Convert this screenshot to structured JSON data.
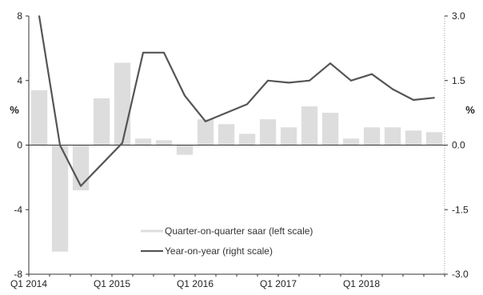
{
  "chart_data": {
    "type": "bar+line",
    "x_labels": [
      "Q1 2014",
      "Q1 2015",
      "Q1 2016",
      "Q1 2017",
      "Q1 2018"
    ],
    "quarters": [
      "Q1 2014",
      "Q2 2014",
      "Q3 2014",
      "Q4 2014",
      "Q1 2015",
      "Q2 2015",
      "Q3 2015",
      "Q4 2015",
      "Q1 2016",
      "Q2 2016",
      "Q3 2016",
      "Q4 2016",
      "Q1 2017",
      "Q2 2017",
      "Q3 2017",
      "Q4 2017",
      "Q1 2018",
      "Q2 2018",
      "Q3 2018",
      "Q4 2018"
    ],
    "left_axis": {
      "unit": "%",
      "ylim": [
        -8,
        8
      ],
      "ticks": [
        8,
        4,
        0,
        -4,
        -8
      ]
    },
    "right_axis": {
      "unit": "%",
      "ylim": [
        -3.0,
        3.0
      ],
      "ticks": [
        "3.0",
        "1.5",
        "0.0",
        "-1.5",
        "-3.0"
      ]
    },
    "series": [
      {
        "name": "Quarter-on-quarter saar (left scale)",
        "type": "bar",
        "axis": "left",
        "color": "#dddddd",
        "values": [
          3.4,
          -6.6,
          -2.8,
          2.9,
          5.1,
          0.4,
          0.3,
          -0.6,
          1.6,
          1.3,
          0.7,
          1.6,
          1.1,
          2.4,
          2.0,
          0.4,
          1.1,
          1.1,
          0.9,
          0.8
        ]
      },
      {
        "name": "Year-on-year (right scale)",
        "type": "line",
        "axis": "right",
        "color": "#555555",
        "values": [
          3.0,
          0.0,
          -0.95,
          -0.45,
          0.05,
          2.15,
          2.15,
          1.15,
          0.55,
          0.75,
          0.95,
          1.5,
          1.45,
          1.5,
          1.9,
          1.5,
          1.65,
          1.3,
          1.05,
          1.1
        ]
      }
    ],
    "grid": false,
    "legend_position": "bottom-center"
  }
}
